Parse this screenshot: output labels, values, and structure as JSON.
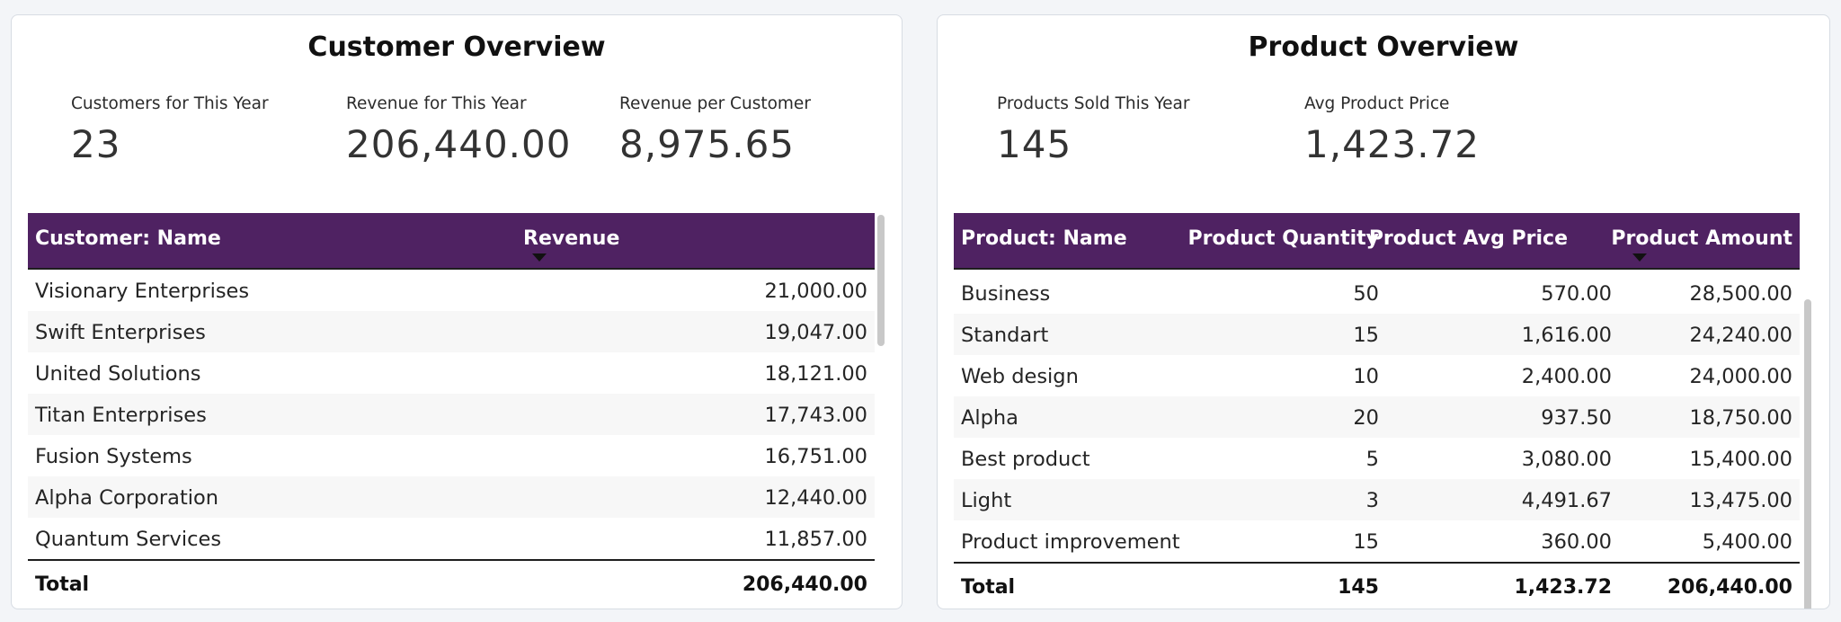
{
  "customer_overview": {
    "title": "Customer Overview",
    "kpis": [
      {
        "label": "Customers for This Year",
        "value": "23"
      },
      {
        "label": "Revenue for This Year",
        "value": "206,440.00"
      },
      {
        "label": "Revenue per Customer",
        "value": "8,975.65"
      }
    ],
    "table": {
      "headers": [
        "Customer: Name",
        "Revenue"
      ],
      "sorted_column": "Revenue",
      "sort_direction": "descending",
      "rows": [
        [
          "Visionary Enterprises",
          "21,000.00"
        ],
        [
          "Swift Enterprises",
          "19,047.00"
        ],
        [
          "United Solutions",
          "18,121.00"
        ],
        [
          "Titan Enterprises",
          "17,743.00"
        ],
        [
          "Fusion Systems",
          "16,751.00"
        ],
        [
          "Alpha Corporation",
          "12,440.00"
        ],
        [
          "Quantum Services",
          "11,857.00"
        ]
      ],
      "total": [
        "Total",
        "206,440.00"
      ]
    }
  },
  "product_overview": {
    "title": "Product Overview",
    "kpis": [
      {
        "label": "Products Sold This Year",
        "value": "145"
      },
      {
        "label": "Avg Product Price",
        "value": "1,423.72"
      }
    ],
    "table": {
      "headers": [
        "Product: Name",
        "Product Quantity",
        "Product Avg Price",
        "Product Amount"
      ],
      "sorted_column": "Product Amount",
      "sort_direction": "descending",
      "rows": [
        [
          "Business",
          "50",
          "570.00",
          "28,500.00"
        ],
        [
          "Standart",
          "15",
          "1,616.00",
          "24,240.00"
        ],
        [
          "Web design",
          "10",
          "2,400.00",
          "24,000.00"
        ],
        [
          "Alpha",
          "20",
          "937.50",
          "18,750.00"
        ],
        [
          "Best product",
          "5",
          "3,080.00",
          "15,400.00"
        ],
        [
          "Light",
          "3",
          "4,491.67",
          "13,475.00"
        ],
        [
          "Product improvement",
          "15",
          "360.00",
          "5,400.00"
        ]
      ],
      "total": [
        "Total",
        "145",
        "1,423.72",
        "206,440.00"
      ]
    }
  },
  "colors": {
    "header_bg": "#4f2262",
    "header_text": "#ffffff",
    "page_bg": "#f3f5f8",
    "panel_bg": "#ffffff"
  }
}
